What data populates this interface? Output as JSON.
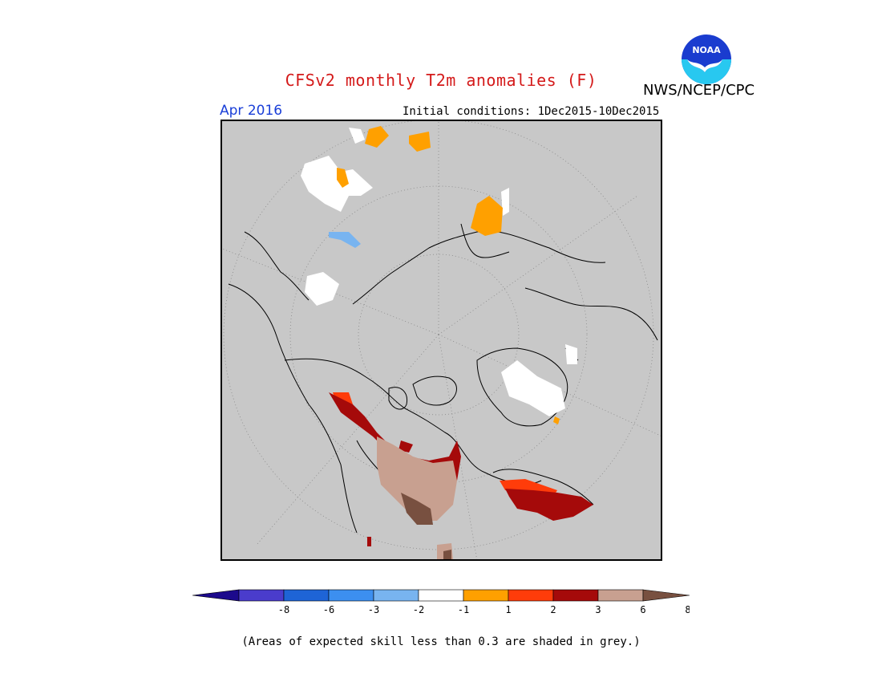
{
  "header": {
    "title": "CFSv2 monthly T2m anomalies (F)",
    "agency": "NWS/NCEP/CPC",
    "logo_text": "NOAA",
    "month": "Apr 2016",
    "initial_conditions": "Initial conditions: 1Dec2015-10Dec2015"
  },
  "colorbar": {
    "ticks": [
      "-8",
      "-6",
      "-3",
      "-2",
      "-1",
      "1",
      "2",
      "3",
      "6",
      "8"
    ],
    "colors": [
      "#1c0a8c",
      "#4a3ccc",
      "#1e64d6",
      "#3c8ff0",
      "#78b4f0",
      "#ffffff",
      "#ffa000",
      "#ff3c0a",
      "#a50a0a",
      "#c8a090",
      "#785040"
    ]
  },
  "footer": {
    "note": "(Areas of expected skill less than 0.3 are shaded in grey.)"
  },
  "colors": {
    "title": "#d41a1a",
    "month": "#1a3fd8",
    "map_background": "#c8c8c8",
    "noaa_blue": "#1a3ccf",
    "noaa_cyan": "#28c8f0"
  }
}
